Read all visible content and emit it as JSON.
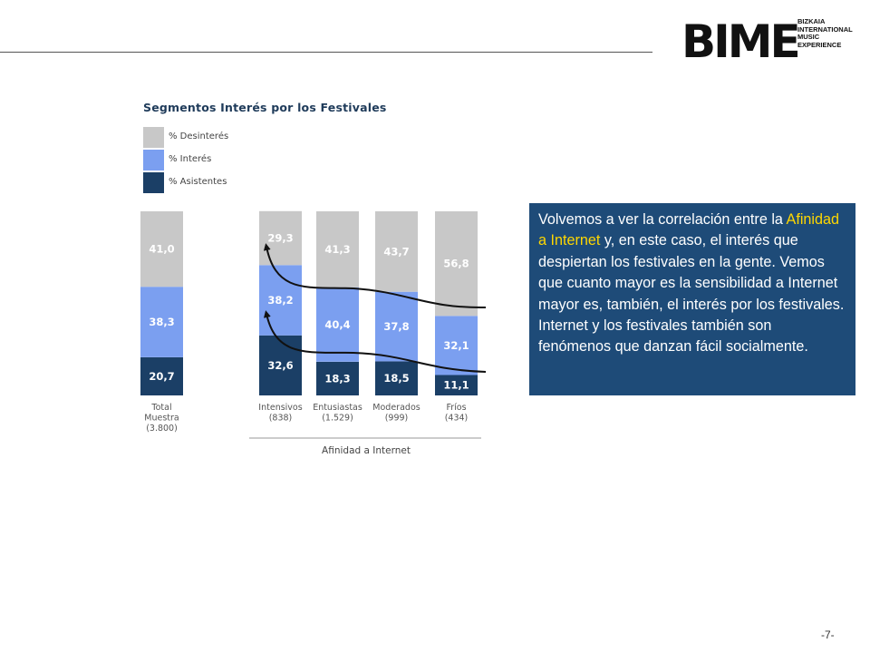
{
  "logo": {
    "big": "BIME",
    "lines": [
      "BIZKAIA",
      "INTERNATIONAL",
      "MUSIC EXPERIENCE"
    ]
  },
  "chart_data": {
    "type": "bar",
    "stacked": true,
    "title": "Segmentos Interés por los Festivales",
    "xlabel": "Afinidad  a Internet",
    "categories": [
      {
        "name": "Total Muestra",
        "n": "(3.800)",
        "label_lines": [
          "Total",
          "Muestra",
          "(3.800)"
        ]
      },
      {
        "name": "Intensivos",
        "n": "(838)",
        "label_lines": [
          "Intensivos",
          "(838)"
        ]
      },
      {
        "name": "Entusiastas",
        "n": "(1.529)",
        "label_lines": [
          "Entusiastas",
          "(1.529)"
        ]
      },
      {
        "name": "Moderados",
        "n": "(999)",
        "label_lines": [
          "Moderados",
          "(999)"
        ]
      },
      {
        "name": "Fríos",
        "n": "(434)",
        "label_lines": [
          "Fríos",
          "(434)"
        ]
      }
    ],
    "series": [
      {
        "name": "% Asistentes",
        "color": "#1b3f66",
        "values": [
          20.7,
          32.6,
          18.3,
          18.5,
          11.1
        ],
        "labels": [
          "20,7",
          "32,6",
          "18,3",
          "18,5",
          "11,1"
        ]
      },
      {
        "name": "% Interés",
        "color": "#7b9ff0",
        "values": [
          38.3,
          38.2,
          40.4,
          37.8,
          32.1
        ],
        "labels": [
          "38,3",
          "38,2",
          "40,4",
          "37,8",
          "32,1"
        ]
      },
      {
        "name": "% Desinterés",
        "color": "#c8c8c8",
        "values": [
          41.0,
          29.3,
          41.3,
          43.7,
          56.8
        ],
        "labels": [
          "41,0",
          "29,3",
          "41,3",
          "43,7",
          "56,8"
        ]
      }
    ],
    "legend_order": [
      "% Desinterés",
      "% Interés",
      "% Asistentes"
    ],
    "ylim": [
      0,
      100
    ]
  },
  "callout": {
    "before": "Volvemos a ver la correlación entre la ",
    "highlight": "Afinidad a Internet",
    "after": " y, en este caso, el interés que despiertan los festivales en la gente. Vemos que cuanto mayor es la sensibilidad a Internet mayor es, también, el interés por los festivales. Internet y los festivales también son fenómenos que danzan fácil socialmente."
  },
  "page_number": "-7-"
}
